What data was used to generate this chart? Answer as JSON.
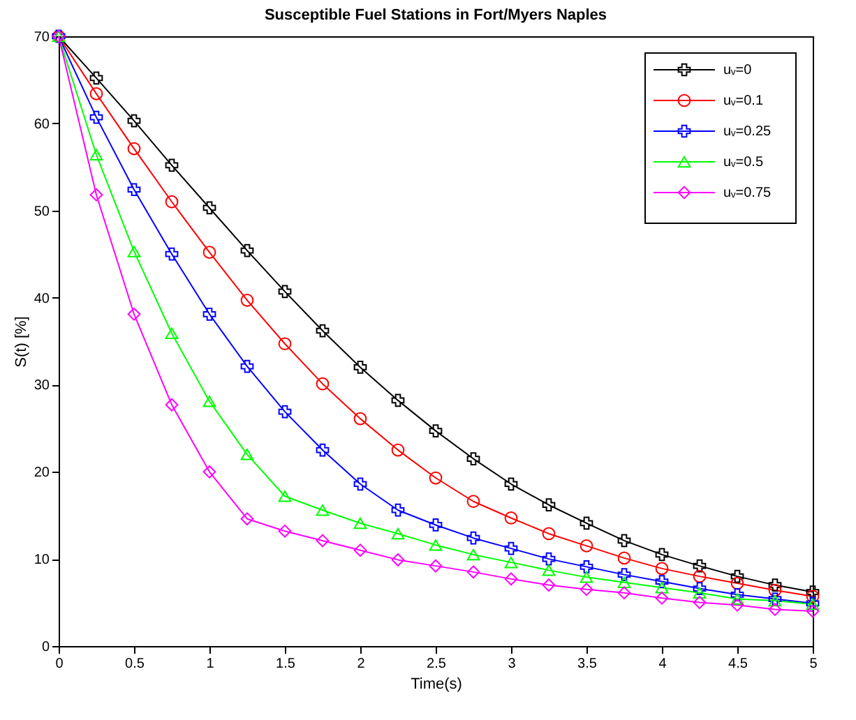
{
  "chart_data": {
    "type": "line",
    "title": "Susceptible Fuel Stations in Fort/Myers Naples",
    "xlabel": "Time(s)",
    "ylabel": "S(t) [%]",
    "x": [
      0,
      0.25,
      0.5,
      0.75,
      1,
      1.25,
      1.5,
      1.75,
      2,
      2.25,
      2.5,
      2.75,
      3,
      3.25,
      3.5,
      3.75,
      4,
      4.25,
      4.5,
      4.75,
      5
    ],
    "series": [
      {
        "name": "uᵥ=0",
        "color": "#000000",
        "marker": "cross",
        "values": [
          70,
          65.2,
          60.3,
          55.2,
          50.3,
          45.4,
          40.7,
          36.2,
          32.0,
          28.2,
          24.7,
          21.5,
          18.6,
          16.2,
          14.1,
          12.1,
          10.5,
          9.2,
          8.0,
          7.0,
          6.2
        ]
      },
      {
        "name": "uᵥ=0.1",
        "color": "#ff0000",
        "marker": "circle",
        "values": [
          70,
          63.4,
          57.1,
          51.0,
          45.2,
          39.7,
          34.7,
          30.1,
          26.1,
          22.5,
          19.3,
          16.6,
          14.7,
          12.9,
          11.5,
          10.1,
          8.9,
          8.0,
          7.2,
          6.4,
          5.7
        ]
      },
      {
        "name": "uᵥ=0.25",
        "color": "#0000ff",
        "marker": "cross",
        "values": [
          70,
          60.7,
          52.4,
          45.0,
          38.1,
          32.1,
          26.9,
          22.5,
          18.6,
          15.6,
          13.9,
          12.4,
          11.2,
          10.0,
          9.1,
          8.2,
          7.4,
          6.6,
          5.9,
          5.4,
          4.9
        ]
      },
      {
        "name": "uᵥ=0.5",
        "color": "#00ff00",
        "marker": "triangle",
        "values": [
          70,
          56.4,
          45.3,
          35.9,
          28.1,
          22.0,
          17.2,
          15.6,
          14.1,
          12.9,
          11.6,
          10.5,
          9.6,
          8.7,
          7.9,
          7.3,
          6.7,
          6.1,
          5.4,
          5.2,
          4.8
        ]
      },
      {
        "name": "uᵥ=0.75",
        "color": "#ff00ff",
        "marker": "diamond",
        "values": [
          70,
          51.8,
          38.1,
          27.7,
          20.0,
          14.6,
          13.2,
          12.1,
          11.0,
          9.9,
          9.2,
          8.5,
          7.7,
          7.0,
          6.5,
          6.1,
          5.5,
          5.0,
          4.7,
          4.2,
          4.0
        ]
      }
    ],
    "xlim": [
      0,
      5
    ],
    "xticks": [
      0,
      0.5,
      1,
      1.5,
      2,
      2.5,
      3,
      3.5,
      4,
      4.5,
      5
    ],
    "ylim": [
      0,
      70
    ],
    "yticks": [
      0,
      10,
      20,
      30,
      40,
      50,
      60,
      70
    ],
    "grid": false,
    "legend": "top right",
    "line_style": "solid"
  }
}
